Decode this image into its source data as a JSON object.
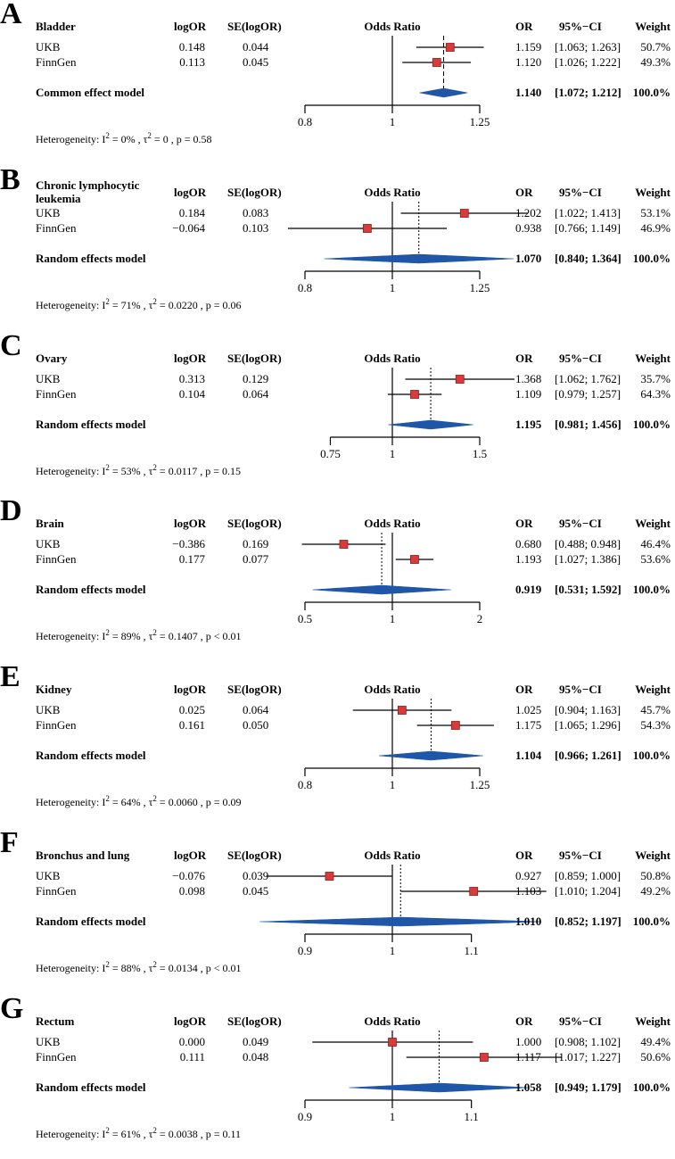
{
  "chart_data": {
    "type": "forest",
    "headers": {
      "logor": "logOR",
      "se": "SE(logOR)",
      "title": "Odds Ratio",
      "or": "OR",
      "ci": "95%−CI",
      "weight": "Weight"
    },
    "heterogeneity_label": "Heterogeneity:",
    "panels": [
      {
        "letter": "A",
        "name": "Bladder",
        "studies": [
          {
            "label": "UKB",
            "logOR": "0.148",
            "se": "0.044",
            "or": 1.159,
            "ci_lo": 1.063,
            "ci_hi": 1.263,
            "or_text": "1.159",
            "ci_text": "[1.063; 1.263]",
            "weight": "50.7%"
          },
          {
            "label": "FinnGen",
            "logOR": "0.113",
            "se": "0.045",
            "or": 1.12,
            "ci_lo": 1.026,
            "ci_hi": 1.222,
            "or_text": "1.120",
            "ci_text": "[1.026; 1.222]",
            "weight": "49.3%"
          }
        ],
        "model": {
          "label": "Common effect model",
          "or": 1.14,
          "ci_lo": 1.072,
          "ci_hi": 1.212,
          "or_text": "1.140",
          "ci_text": "[1.072; 1.212]",
          "weight": "100.0%"
        },
        "xticks": [
          0.8,
          1,
          1.25
        ],
        "xtick_labels": [
          "0.8",
          "1",
          "1.25"
        ],
        "xlim": [
          0.8,
          1.25
        ],
        "heterogeneity": {
          "i2": "0%",
          "tau2": "0",
          "p": "p = 0.58"
        }
      },
      {
        "letter": "B",
        "name": "Chronic lymphocytic leukemia",
        "studies": [
          {
            "label": "UKB",
            "logOR": "0.184",
            "se": "0.083",
            "or": 1.202,
            "ci_lo": 1.022,
            "ci_hi": 1.413,
            "or_text": "1.202",
            "ci_text": "[1.022; 1.413]",
            "weight": "53.1%"
          },
          {
            "label": "FinnGen",
            "logOR": "−0.064",
            "se": "0.103",
            "or": 0.938,
            "ci_lo": 0.766,
            "ci_hi": 1.149,
            "or_text": "0.938",
            "ci_text": "[0.766; 1.149]",
            "weight": "46.9%"
          }
        ],
        "model": {
          "label": "Random effects model",
          "or": 1.07,
          "ci_lo": 0.84,
          "ci_hi": 1.364,
          "or_text": "1.070",
          "ci_text": "[0.840; 1.364]",
          "weight": "100.0%"
        },
        "xticks": [
          0.8,
          1,
          1.25
        ],
        "xtick_labels": [
          "0.8",
          "1",
          "1.25"
        ],
        "xlim": [
          0.8,
          1.25
        ],
        "heterogeneity": {
          "i2": "71%",
          "tau2": "0.0220",
          "p": "p = 0.06"
        }
      },
      {
        "letter": "C",
        "name": "Ovary",
        "studies": [
          {
            "label": "UKB",
            "logOR": "0.313",
            "se": "0.129",
            "or": 1.368,
            "ci_lo": 1.062,
            "ci_hi": 1.762,
            "or_text": "1.368",
            "ci_text": "[1.062; 1.762]",
            "weight": "35.7%"
          },
          {
            "label": "FinnGen",
            "logOR": "0.104",
            "se": "0.064",
            "or": 1.109,
            "ci_lo": 0.979,
            "ci_hi": 1.257,
            "or_text": "1.109",
            "ci_text": "[0.979; 1.257]",
            "weight": "64.3%"
          }
        ],
        "model": {
          "label": "Random effects model",
          "or": 1.195,
          "ci_lo": 0.981,
          "ci_hi": 1.456,
          "or_text": "1.195",
          "ci_text": "[0.981; 1.456]",
          "weight": "100.0%"
        },
        "xticks": [
          0.75,
          1,
          1.5
        ],
        "xtick_labels": [
          "0.75",
          "1",
          "1.5"
        ],
        "xlim": [
          0.75,
          1.5
        ],
        "heterogeneity": {
          "i2": "53%",
          "tau2": "0.0117",
          "p": "p = 0.15"
        }
      },
      {
        "letter": "D",
        "name": "Brain",
        "studies": [
          {
            "label": "UKB",
            "logOR": "−0.386",
            "se": "0.169",
            "or": 0.68,
            "ci_lo": 0.488,
            "ci_hi": 0.948,
            "or_text": "0.680",
            "ci_text": "[0.488; 0.948]",
            "weight": "46.4%"
          },
          {
            "label": "FinnGen",
            "logOR": "0.177",
            "se": "0.077",
            "or": 1.193,
            "ci_lo": 1.027,
            "ci_hi": 1.386,
            "or_text": "1.193",
            "ci_text": "[1.027; 1.386]",
            "weight": "53.6%"
          }
        ],
        "model": {
          "label": "Random effects model",
          "or": 0.919,
          "ci_lo": 0.531,
          "ci_hi": 1.592,
          "or_text": "0.919",
          "ci_text": "[0.531; 1.592]",
          "weight": "100.0%"
        },
        "xticks": [
          0.5,
          1,
          2
        ],
        "xtick_labels": [
          "0.5",
          "1",
          "2"
        ],
        "xlim": [
          0.5,
          2
        ],
        "heterogeneity": {
          "i2": "89%",
          "tau2": "0.1407",
          "p": "p < 0.01"
        }
      },
      {
        "letter": "E",
        "name": "Kidney",
        "studies": [
          {
            "label": "UKB",
            "logOR": "0.025",
            "se": "0.064",
            "or": 1.025,
            "ci_lo": 0.904,
            "ci_hi": 1.163,
            "or_text": "1.025",
            "ci_text": "[0.904; 1.163]",
            "weight": "45.7%"
          },
          {
            "label": "FinnGen",
            "logOR": "0.161",
            "se": "0.050",
            "or": 1.175,
            "ci_lo": 1.065,
            "ci_hi": 1.296,
            "or_text": "1.175",
            "ci_text": "[1.065; 1.296]",
            "weight": "54.3%"
          }
        ],
        "model": {
          "label": "Random effects model",
          "or": 1.104,
          "ci_lo": 0.966,
          "ci_hi": 1.261,
          "or_text": "1.104",
          "ci_text": "[0.966; 1.261]",
          "weight": "100.0%"
        },
        "xticks": [
          0.8,
          1,
          1.25
        ],
        "xtick_labels": [
          "0.8",
          "1",
          "1.25"
        ],
        "xlim": [
          0.8,
          1.25
        ],
        "heterogeneity": {
          "i2": "64%",
          "tau2": "0.0060",
          "p": "p = 0.09"
        }
      },
      {
        "letter": "F",
        "name": "Bronchus and lung",
        "studies": [
          {
            "label": "UKB",
            "logOR": "−0.076",
            "se": "0.039",
            "or": 0.927,
            "ci_lo": 0.859,
            "ci_hi": 1.0,
            "or_text": "0.927",
            "ci_text": "[0.859; 1.000]",
            "weight": "50.8%"
          },
          {
            "label": "FinnGen",
            "logOR": "0.098",
            "se": "0.045",
            "or": 1.103,
            "ci_lo": 1.01,
            "ci_hi": 1.204,
            "or_text": "1.103",
            "ci_text": "[1.010; 1.204]",
            "weight": "49.2%"
          }
        ],
        "model": {
          "label": "Random effects model",
          "or": 1.01,
          "ci_lo": 0.852,
          "ci_hi": 1.197,
          "or_text": "1.010",
          "ci_text": "[0.852; 1.197]",
          "weight": "100.0%"
        },
        "xticks": [
          0.9,
          1,
          1.1
        ],
        "xtick_labels": [
          "0.9",
          "1",
          "1.1"
        ],
        "xlim": [
          0.9,
          1.1
        ],
        "heterogeneity": {
          "i2": "88%",
          "tau2": "0.0134",
          "p": "p < 0.01"
        }
      },
      {
        "letter": "G",
        "name": "Rectum",
        "studies": [
          {
            "label": "UKB",
            "logOR": "0.000",
            "se": "0.049",
            "or": 1.0,
            "ci_lo": 0.908,
            "ci_hi": 1.102,
            "or_text": "1.000",
            "ci_text": "[0.908; 1.102]",
            "weight": "49.4%"
          },
          {
            "label": "FinnGen",
            "logOR": "0.111",
            "se": "0.048",
            "or": 1.117,
            "ci_lo": 1.017,
            "ci_hi": 1.227,
            "or_text": "1.117",
            "ci_text": "[1.017; 1.227]",
            "weight": "50.6%"
          }
        ],
        "model": {
          "label": "Random effects model",
          "or": 1.058,
          "ci_lo": 0.949,
          "ci_hi": 1.179,
          "or_text": "1.058",
          "ci_text": "[0.949; 1.179]",
          "weight": "100.0%"
        },
        "xticks": [
          0.9,
          1,
          1.1
        ],
        "xtick_labels": [
          "0.9",
          "1",
          "1.1"
        ],
        "xlim": [
          0.9,
          1.1
        ],
        "heterogeneity": {
          "i2": "61%",
          "tau2": "0.0038",
          "p": "p = 0.11"
        }
      }
    ],
    "colors": {
      "square": "#d93a3a",
      "square_edge": "#8c1c1c",
      "diamond": "#1f56a8",
      "line": "#000000"
    }
  }
}
